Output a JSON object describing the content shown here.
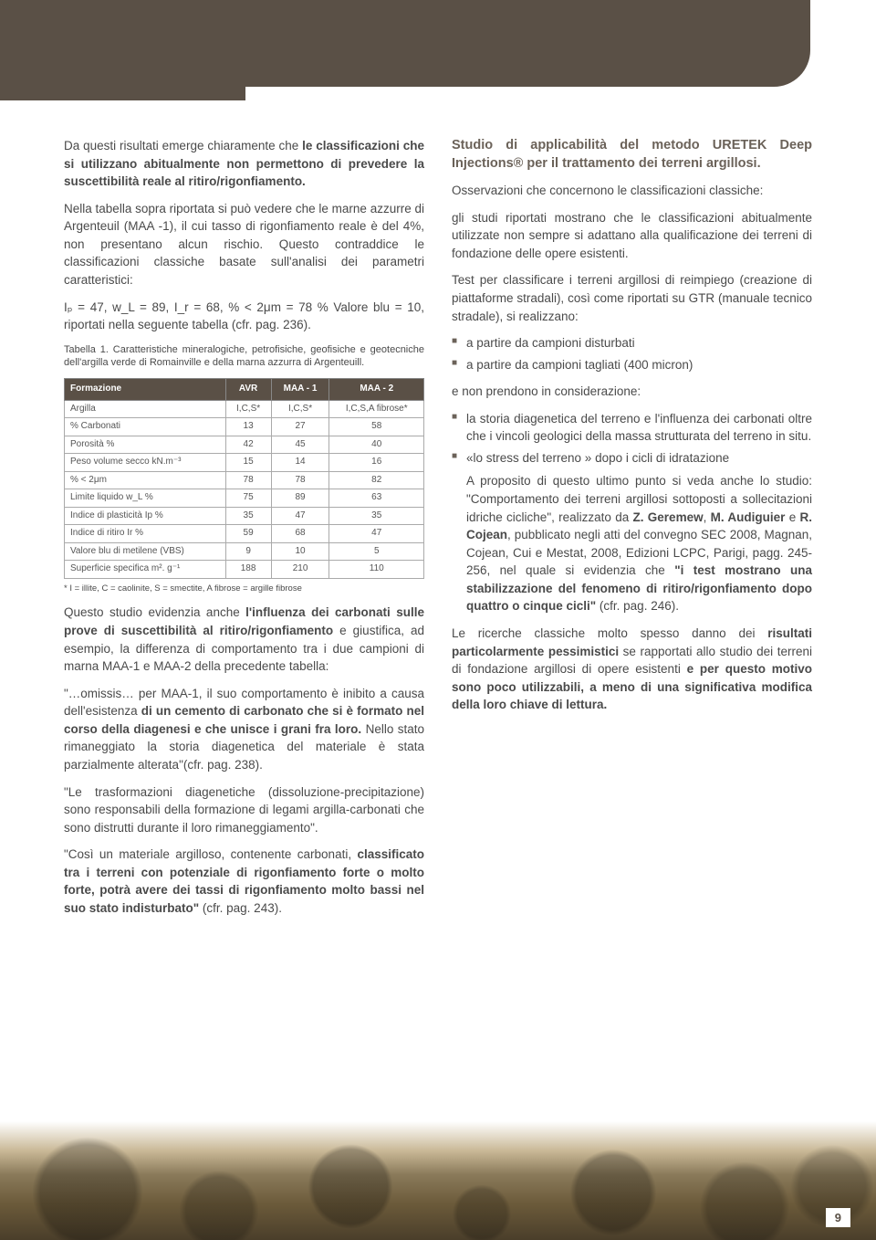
{
  "leftCol": {
    "p1_a": "Da questi risultati emerge chiaramente che ",
    "p1_b": "le classificazioni che si utilizzano abitualmente non permettono di prevedere la suscettibilità reale al ritiro/rigonfiamento.",
    "p2": "Nella tabella sopra riportata si può vedere che le marne azzurre di Argenteuil (MAA -1), il cui tasso di rigonfiamento reale è del 4%, non presentano alcun rischio. Questo contraddice le classificazioni classiche basate sull'analisi dei parametri caratteristici:",
    "p3": "Iₚ = 47, w_L = 89, I_r = 68, % < 2μm = 78 % Valore blu = 10, riportati nella seguente tabella (cfr. pag. 236).",
    "tableCaption": "Tabella 1. Caratteristiche mineralogiche, petrofisiche, geofisiche e geotecniche dell'argilla verde di Romainville e della marna azzurra di Argenteuill.",
    "table": {
      "headers": [
        "Formazione",
        "AVR",
        "MAA - 1",
        "MAA - 2"
      ],
      "rows": [
        [
          "Argilla",
          "I,C,S*",
          "I,C,S*",
          "I,C,S,A fibrose*"
        ],
        [
          "% Carbonati",
          "13",
          "27",
          "58"
        ],
        [
          "Porosità %",
          "42",
          "45",
          "40"
        ],
        [
          "Peso volume secco kN.m⁻³",
          "15",
          "14",
          "16"
        ],
        [
          "% < 2μm",
          "78",
          "78",
          "82"
        ],
        [
          "Limite liquido w_L %",
          "75",
          "89",
          "63"
        ],
        [
          "Indice di plasticità Ip %",
          "35",
          "47",
          "35"
        ],
        [
          "Indice di ritiro Ir %",
          "59",
          "68",
          "47"
        ],
        [
          "Valore blu di metilene (VBS)",
          "9",
          "10",
          "5"
        ],
        [
          "Superficie specifica m². g⁻¹",
          "188",
          "210",
          "110"
        ]
      ]
    },
    "footnote": "* I = illite, C = caolinite, S = smectite, A fibrose = argille fibrose",
    "p4_a": "Questo studio evidenzia anche ",
    "p4_b": "l'influenza dei carbonati sulle prove di suscettibilità al ritiro/rigonfiamento",
    "p4_c": " e giustifica, ad esempio, la differenza di comportamento tra i due campioni di marna MAA-1 e MAA-2 della precedente tabella:",
    "p5_a": "\"…omissis… per MAA-1, il suo comportamento è inibito a causa dell'esistenza ",
    "p5_b": "di un cemento di carbonato che si è formato nel corso della diagenesi e che unisce i grani fra loro.",
    "p5_c": " Nello stato rimaneggiato la storia diagenetica del materiale è stata parzialmente alterata\"(cfr. pag. 238).",
    "p6": "\"Le trasformazioni diagenetiche (dissoluzione-precipitazione) sono responsabili della formazione di legami argilla-carbonati che sono distrutti durante il loro rimaneggiamento\".",
    "p7_a": "\"Così un materiale argilloso, contenente carbonati, ",
    "p7_b": "classificato tra i terreni con potenziale di rigonfiamento forte o molto forte, potrà avere dei tassi di rigonfiamento molto bassi nel suo stato indisturbato\"",
    "p7_c": " (cfr. pag. 243)."
  },
  "rightCol": {
    "heading": "Studio di applicabilità del metodo URETEK Deep Injections® per il trattamento dei terreni argillosi.",
    "p1": "Osservazioni che concernono le classificazioni classiche:",
    "p2": "gli studi riportati mostrano che le classificazioni abitualmente utilizzate non sempre si adattano alla qualificazione dei terreni di fondazione delle opere esistenti.",
    "p3": "Test per classificare i terreni argillosi di reimpiego (creazione di piattaforme stradali), così come riportati su GTR (manuale tecnico stradale), si realizzano:",
    "list1": [
      "a partire da campioni disturbati",
      "a partire da campioni tagliati (400 micron)"
    ],
    "p4": "e non prendono in considerazione:",
    "list2_item1": "la storia diagenetica del terreno e l'influenza dei carbonati oltre che i vincoli geologici della massa strutturata del terreno in situ.",
    "list2_item2": "«lo stress del terreno » dopo i cicli di idratazione",
    "p5_a": "A proposito di questo ultimo punto si veda anche lo studio: \"Comportamento dei terreni argillosi sottoposti a sollecitazioni idriche cicliche\", realizzato da ",
    "p5_b": "Z. Geremew",
    "p5_c": ", ",
    "p5_d": "M. Audiguier",
    "p5_e": " e ",
    "p5_f": "R. Cojean",
    "p5_g": ", pubblicato negli atti del convegno SEC 2008, Magnan, Cojean, Cui e Mestat, 2008, Edizioni LCPC, Parigi, pagg. 245-256, nel quale si evidenzia che ",
    "p5_h": "\"i test mostrano una stabilizzazione del fenomeno di ritiro/rigonfiamento dopo quattro o cinque cicli\"",
    "p5_i": " (cfr. pag. 246).",
    "p6_a": "Le ricerche classiche molto spesso danno dei ",
    "p6_b": "risultati particolarmente pessimistici",
    "p6_c": " se rapportati allo studio dei terreni di fondazione argillosi di opere esistenti ",
    "p6_d": "e per questo motivo sono poco utilizzabili, a meno di una significativa modifica della loro chiave di lettura."
  },
  "pageNumber": "9"
}
